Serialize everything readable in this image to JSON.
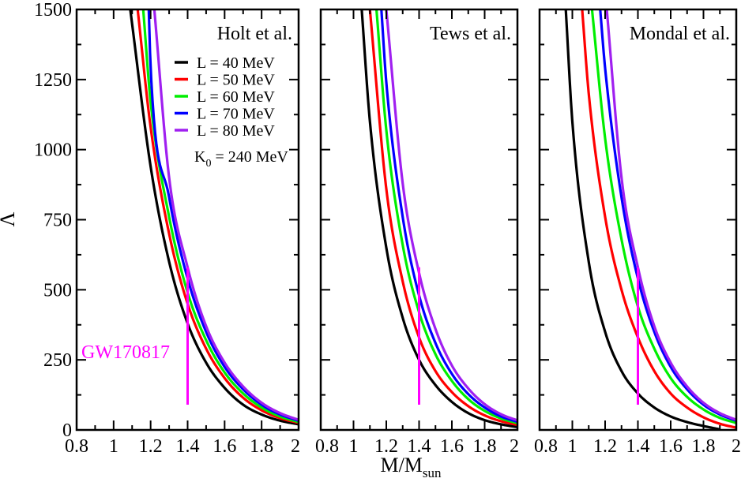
{
  "chart_data": {
    "type": "line",
    "ylabel": "Λ",
    "xlabel": "M/M",
    "xlabel_sub": "sun",
    "xlim": [
      0.8,
      2.0
    ],
    "ylim": [
      0,
      1500
    ],
    "xticks": [
      "0.8",
      "1",
      "1.2",
      "1.4",
      "1.6",
      "1.8",
      "2"
    ],
    "yticks": [
      "0",
      "250",
      "500",
      "750",
      "1000",
      "1250",
      "1500"
    ],
    "legend": {
      "placement": "top-right of first panel",
      "entries": [
        "L = 40 MeV",
        "L = 50 MeV",
        "L = 60 MeV",
        "L = 70 MeV",
        "L = 80 MeV"
      ],
      "colors": [
        "#000000",
        "#ff0000",
        "#00ee00",
        "#0000ff",
        "#a020f0"
      ],
      "note_main": "K",
      "note_sub": "0",
      "note_rest": " = 240 MeV"
    },
    "annotation": {
      "text": "GW170817",
      "color": "#ff00ff",
      "x": 1.4,
      "y_range": [
        90,
        580
      ]
    },
    "panels": [
      {
        "title": "Holt et al.",
        "series": [
          {
            "name": "L = 40 MeV",
            "x": [
              1.09,
              1.2,
              1.3,
              1.4,
              1.5,
              1.6,
              1.7,
              1.8,
              1.9,
              2.0
            ],
            "values": [
              1500,
              940,
              600,
              380,
              240,
              150,
              90,
              55,
              33,
              20
            ]
          },
          {
            "name": "L = 50 MeV",
            "x": [
              1.13,
              1.2,
              1.3,
              1.4,
              1.5,
              1.6,
              1.7,
              1.8,
              1.9,
              2.0
            ],
            "values": [
              1500,
              1080,
              700,
              450,
              290,
              185,
              115,
              70,
              42,
              25
            ]
          },
          {
            "name": "L = 60 MeV",
            "x": [
              1.16,
              1.2,
              1.3,
              1.4,
              1.5,
              1.6,
              1.7,
              1.8,
              1.9,
              2.0
            ],
            "values": [
              1500,
              1170,
              760,
              490,
              320,
              205,
              130,
              80,
              48,
              28
            ]
          },
          {
            "name": "L = 70 MeV",
            "x": [
              1.19,
              1.2,
              1.3,
              1.4,
              1.5,
              1.6,
              1.7,
              1.8,
              1.9,
              2.0
            ],
            "values": [
              1500,
              1290,
              830,
              540,
              350,
              225,
              145,
              90,
              55,
              33
            ]
          },
          {
            "name": "L = 80 MeV",
            "x": [
              1.22,
              1.3,
              1.4,
              1.5,
              1.6,
              1.7,
              1.8,
              1.9,
              2.0
            ],
            "values": [
              1500,
              900,
              580,
              370,
              240,
              155,
              97,
              60,
              36
            ]
          }
        ]
      },
      {
        "title": "Tews et al.",
        "series": [
          {
            "name": "L = 40 MeV",
            "x": [
              1.05,
              1.1,
              1.2,
              1.3,
              1.4,
              1.5,
              1.6,
              1.7,
              1.8,
              1.9,
              2.0
            ],
            "values": [
              1500,
              1100,
              650,
              400,
              250,
              160,
              100,
              60,
              35,
              20,
              10
            ]
          },
          {
            "name": "L = 50 MeV",
            "x": [
              1.1,
              1.2,
              1.3,
              1.4,
              1.5,
              1.6,
              1.7,
              1.8,
              1.9,
              2.0
            ],
            "values": [
              1500,
              860,
              530,
              330,
              210,
              135,
              85,
              52,
              31,
              18
            ]
          },
          {
            "name": "L = 60 MeV",
            "x": [
              1.14,
              1.2,
              1.3,
              1.4,
              1.5,
              1.6,
              1.7,
              1.8,
              1.9,
              2.0
            ],
            "values": [
              1500,
              1070,
              660,
              420,
              270,
              175,
              110,
              68,
              41,
              24
            ]
          },
          {
            "name": "L = 70 MeV",
            "x": [
              1.17,
              1.2,
              1.3,
              1.4,
              1.5,
              1.6,
              1.7,
              1.8,
              1.9,
              2.0
            ],
            "values": [
              1500,
              1240,
              760,
              480,
              310,
              200,
              128,
              80,
              48,
              29
            ]
          },
          {
            "name": "L = 80 MeV",
            "x": [
              1.2,
              1.3,
              1.4,
              1.5,
              1.6,
              1.7,
              1.8,
              1.9,
              2.0
            ],
            "values": [
              1500,
              880,
              560,
              360,
              230,
              148,
              92,
              56,
              34
            ]
          }
        ]
      },
      {
        "title": "Mondal et al.",
        "series": [
          {
            "name": "L = 40 MeV",
            "x": [
              0.96,
              1.0,
              1.1,
              1.2,
              1.3,
              1.4,
              1.5,
              1.6,
              1.7,
              1.8,
              1.9
            ],
            "values": [
              1500,
              1100,
              600,
              350,
              210,
              130,
              80,
              48,
              28,
              14,
              2
            ]
          },
          {
            "name": "L = 50 MeV",
            "x": [
              1.06,
              1.1,
              1.2,
              1.3,
              1.4,
              1.5,
              1.6,
              1.7,
              1.8,
              1.9,
              2.0
            ],
            "values": [
              1500,
              1200,
              760,
              500,
              330,
              210,
              130,
              80,
              45,
              22,
              8
            ]
          },
          {
            "name": "L = 60 MeV",
            "x": [
              1.12,
              1.2,
              1.3,
              1.4,
              1.5,
              1.6,
              1.7,
              1.8,
              1.9,
              2.0
            ],
            "values": [
              1500,
              1040,
              680,
              440,
              290,
              185,
              118,
              73,
              43,
              25
            ]
          },
          {
            "name": "L = 70 MeV",
            "x": [
              1.17,
              1.2,
              1.3,
              1.4,
              1.5,
              1.6,
              1.7,
              1.8,
              1.9,
              2.0
            ],
            "values": [
              1500,
              1290,
              830,
              540,
              350,
              225,
              145,
              90,
              55,
              33
            ]
          },
          {
            "name": "L = 80 MeV",
            "x": [
              1.21,
              1.3,
              1.4,
              1.5,
              1.6,
              1.7,
              1.8,
              1.9,
              2.0
            ],
            "values": [
              1500,
              900,
              580,
              370,
              240,
              155,
              97,
              60,
              36
            ]
          }
        ]
      }
    ]
  }
}
